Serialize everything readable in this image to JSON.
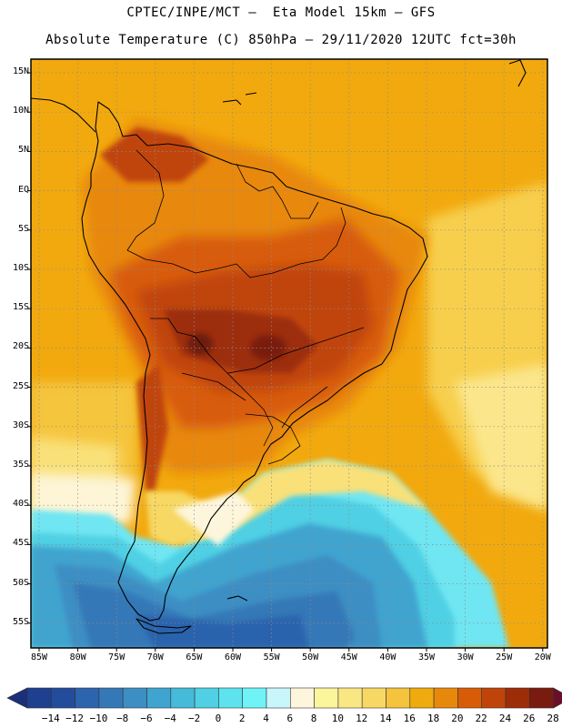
{
  "header": {
    "line1": "CPTEC/INPE/MCT –  Eta Model 15km – GFS",
    "line2": "Absolute Temperature (C) 850hPa – 29/11/2020 12UTC fct=30h"
  },
  "map": {
    "region": "South America",
    "lat_labels": [
      "15N",
      "10N",
      "5N",
      "EQ",
      "5S",
      "10S",
      "15S",
      "20S",
      "25S",
      "30S",
      "35S",
      "40S",
      "45S",
      "50S",
      "55S"
    ],
    "lon_labels": [
      "85W",
      "80W",
      "75W",
      "70W",
      "65W",
      "60W",
      "55W",
      "50W",
      "45W",
      "40W",
      "35W",
      "30W",
      "25W",
      "20W"
    ]
  },
  "colorbar": {
    "labels": [
      "-14",
      "-12",
      "-10",
      "-8",
      "-6",
      "-4",
      "-2",
      "0",
      "2",
      "4",
      "6",
      "8",
      "10",
      "12",
      "14",
      "16",
      "18",
      "20",
      "22",
      "24",
      "26",
      "28"
    ],
    "colors": [
      "#1f3f8f",
      "#234d9b",
      "#2c64ad",
      "#3478b7",
      "#3d8ec3",
      "#3fa4cf",
      "#45bad9",
      "#4fd0e4",
      "#5de3ee",
      "#6ff3f7",
      "#c9f6fb",
      "#fdf6dc",
      "#fbf59b",
      "#f9e783",
      "#f7d864",
      "#f3c43c",
      "#efab0e",
      "#e8880b",
      "#d85c08",
      "#c0440a",
      "#9c2d08",
      "#7a1b10"
    ],
    "min_color": "#1b2f7a",
    "max_color": "#6a0f2a"
  },
  "theme": {
    "land_outline": "#000000",
    "grid": "#8c8c8c",
    "ocean_warm": "#f2a80c",
    "hot_core": "#6f1a10"
  }
}
